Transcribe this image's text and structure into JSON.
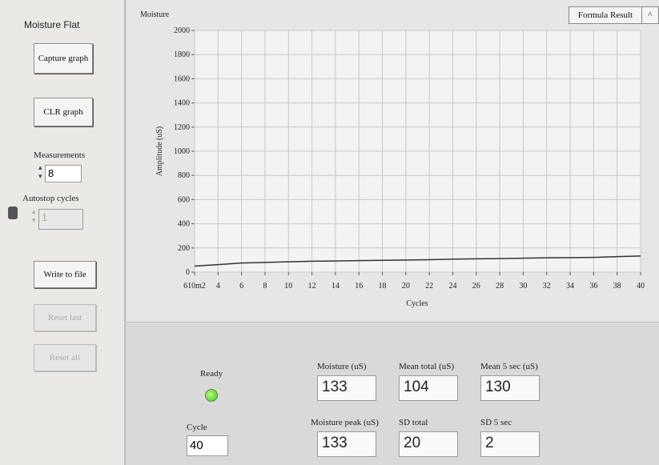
{
  "left_panel": {
    "title": "Moisture Flat",
    "capture_button": "Capture graph",
    "clr_button": "CLR graph",
    "measurements_label": "Measurements",
    "measurements_value": 8,
    "autostop_label": "Autostop  cycles",
    "autostop_value": 1,
    "write_button": "Write to file",
    "reset_last_button": "Reset last",
    "reset_all_button": "Reset all"
  },
  "formula_button": "Formula Result",
  "chart_data": {
    "type": "line",
    "title": "Moisture",
    "y_label": "Amplitude (uS)",
    "x_label": "Cycles",
    "color": "#333333",
    "grid": true,
    "x": [
      2,
      4,
      6,
      8,
      10,
      12,
      14,
      16,
      18,
      20,
      22,
      24,
      26,
      28,
      30,
      32,
      34,
      36,
      38,
      40
    ],
    "values": [
      50,
      62,
      75,
      80,
      85,
      90,
      92,
      95,
      98,
      100,
      103,
      108,
      110,
      112,
      115,
      118,
      120,
      122,
      128,
      133
    ],
    "xlim": [
      2,
      40
    ],
    "xticks": [
      {
        "value": 2,
        "label": "610m2"
      },
      4,
      6,
      8,
      10,
      12,
      14,
      16,
      18,
      20,
      22,
      24,
      26,
      28,
      30,
      32,
      34,
      36,
      38,
      40
    ],
    "ylim": [
      0,
      2000
    ],
    "yticks": [
      0,
      200,
      400,
      600,
      800,
      1000,
      1200,
      1400,
      1600,
      1800,
      2000
    ]
  },
  "status": {
    "ready_label": "Ready",
    "cycle_label": "Cycle",
    "cycle_value": 40
  },
  "indicators": [
    {
      "label": "Moisture (uS)",
      "value": 133
    },
    {
      "label": "Mean total (uS)",
      "value": 104
    },
    {
      "label": "Mean 5 sec (uS)",
      "value": 130
    },
    {
      "label": "Moisture peak (uS)",
      "value": 133
    },
    {
      "label": "SD total",
      "value": 20
    },
    {
      "label": "SD 5 sec",
      "value": 2
    }
  ]
}
